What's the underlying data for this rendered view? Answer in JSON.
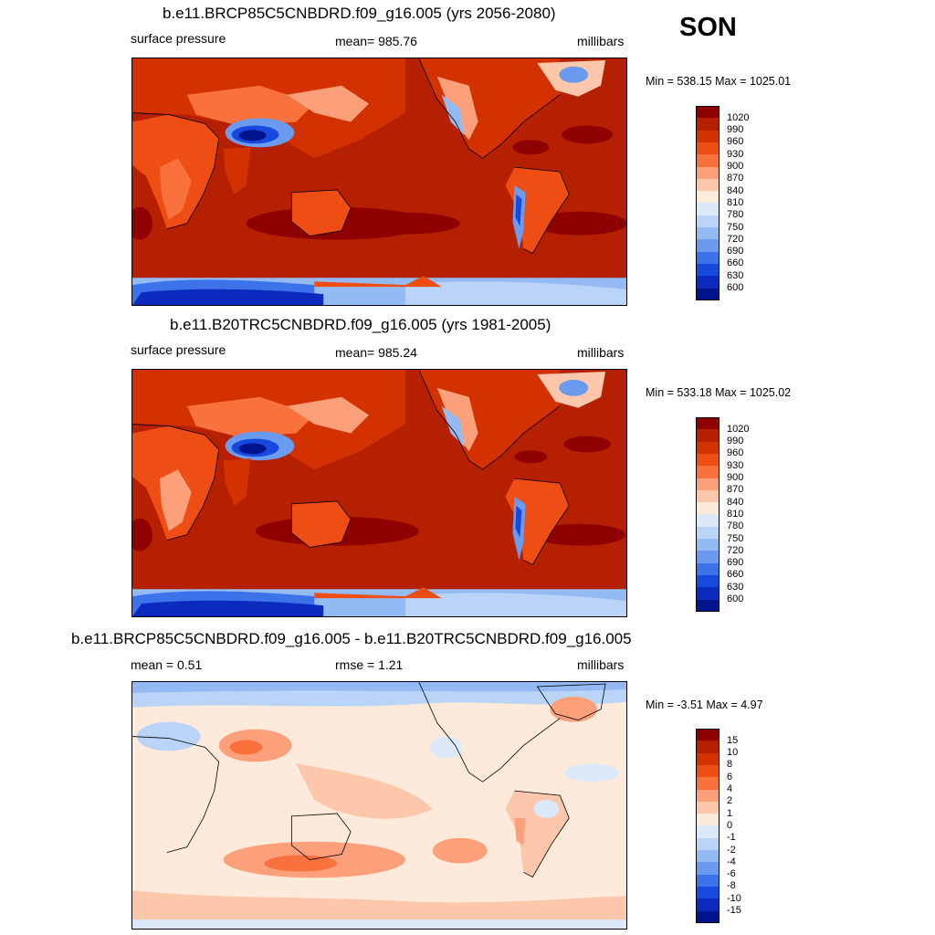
{
  "season": "SON",
  "panels": [
    {
      "title": "b.e11.BRCP85C5CNBDRD.f09_g16.005 (yrs 2056-2080)",
      "left_label": "surface pressure",
      "center_label": "mean= 985.76",
      "right_label": "millibars",
      "minmax": "Min = 538.15 Max = 1025.01",
      "colorbar": {
        "ticks": [
          "1020",
          "990",
          "960",
          "930",
          "900",
          "870",
          "840",
          "810",
          "780",
          "750",
          "720",
          "690",
          "660",
          "630",
          "600"
        ],
        "colors": [
          "#8f0000",
          "#b42000",
          "#d33100",
          "#ee4d13",
          "#f9723d",
          "#fca07b",
          "#fdc7ab",
          "#feeadb",
          "#dbe9fb",
          "#bad4f7",
          "#94baf3",
          "#6b9bf0",
          "#3c73ea",
          "#1649dd",
          "#0a2bbd",
          "#00148e"
        ]
      }
    },
    {
      "title": "b.e11.B20TRC5CNBDRD.f09_g16.005 (yrs 1981-2005)",
      "left_label": "surface pressure",
      "center_label": "mean= 985.24",
      "right_label": "millibars",
      "minmax": "Min = 533.18 Max = 1025.02",
      "colorbar": {
        "ticks": [
          "1020",
          "990",
          "960",
          "930",
          "900",
          "870",
          "840",
          "810",
          "780",
          "750",
          "720",
          "690",
          "660",
          "630",
          "600"
        ],
        "colors": [
          "#8f0000",
          "#b42000",
          "#d33100",
          "#ee4d13",
          "#f9723d",
          "#fca07b",
          "#fdc7ab",
          "#feeadb",
          "#dbe9fb",
          "#bad4f7",
          "#94baf3",
          "#6b9bf0",
          "#3c73ea",
          "#1649dd",
          "#0a2bbd",
          "#00148e"
        ]
      }
    },
    {
      "title": "b.e11.BRCP85C5CNBDRD.f09_g16.005 - b.e11.B20TRC5CNBDRD.f09_g16.005",
      "left_label": "mean =   0.51",
      "center_label": "rmse =   1.21",
      "right_label": "millibars",
      "minmax": "Min =  -3.51 Max =   4.97",
      "colorbar": {
        "ticks": [
          "15",
          "10",
          "8",
          "6",
          "4",
          "2",
          "1",
          "0",
          "-1",
          "-2",
          "-4",
          "-6",
          "-8",
          "-10",
          "-15"
        ],
        "colors": [
          "#8f0000",
          "#b42000",
          "#d33100",
          "#ee4d13",
          "#f9723d",
          "#fca07b",
          "#fdc7ab",
          "#feeadb",
          "#dbe9fb",
          "#bad4f7",
          "#94baf3",
          "#6b9bf0",
          "#3c73ea",
          "#1649dd",
          "#0a2bbd",
          "#00148e"
        ]
      }
    }
  ]
}
